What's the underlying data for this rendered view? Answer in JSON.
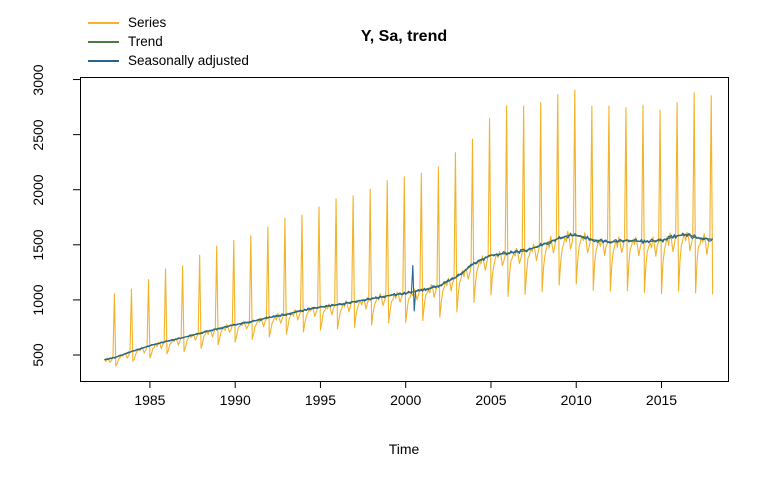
{
  "chart_data": {
    "type": "line",
    "title": "Y, Sa, trend",
    "xlabel": "Time",
    "ylabel": "",
    "x_ticks": [
      1985,
      1990,
      1995,
      2000,
      2005,
      2010,
      2015
    ],
    "y_ticks": [
      500,
      1000,
      1500,
      2000,
      2500,
      3000
    ],
    "xlim": [
      1980.9,
      2018.9
    ],
    "ylim": [
      264,
      3023
    ],
    "grid": false,
    "legend_position": "top-left",
    "frequency": "monthly",
    "x_start": 1982.3333,
    "x_end": 2018.0,
    "legend": [
      {
        "label": "Series",
        "color": "#F3B229"
      },
      {
        "label": "Trend",
        "color": "#4A7C40"
      },
      {
        "label": "Seasonally adjusted",
        "color": "#266394"
      }
    ],
    "series": [
      {
        "name": "Series",
        "color": "#F3B229",
        "width": 1.1
      },
      {
        "name": "Trend",
        "color": "#4A7C40",
        "width": 1.4
      },
      {
        "name": "Seasonally adjusted",
        "color": "#266394",
        "width": 1.1
      }
    ],
    "trend_points": [
      [
        1982.3,
        455
      ],
      [
        1983,
        480
      ],
      [
        1984,
        535
      ],
      [
        1985,
        585
      ],
      [
        1986,
        625
      ],
      [
        1987,
        660
      ],
      [
        1988,
        700
      ],
      [
        1989,
        740
      ],
      [
        1990,
        775
      ],
      [
        1991,
        805
      ],
      [
        1992,
        840
      ],
      [
        1993,
        870
      ],
      [
        1994,
        905
      ],
      [
        1995,
        935
      ],
      [
        1996,
        955
      ],
      [
        1997,
        985
      ],
      [
        1998,
        1010
      ],
      [
        1999,
        1040
      ],
      [
        2000,
        1060
      ],
      [
        2001,
        1090
      ],
      [
        2002,
        1130
      ],
      [
        2003,
        1210
      ],
      [
        2004,
        1330
      ],
      [
        2005,
        1405
      ],
      [
        2006,
        1425
      ],
      [
        2007,
        1445
      ],
      [
        2008,
        1500
      ],
      [
        2009,
        1560
      ],
      [
        2009.7,
        1590
      ],
      [
        2010.5,
        1570
      ],
      [
        2011,
        1545
      ],
      [
        2012,
        1525
      ],
      [
        2013,
        1540
      ],
      [
        2014,
        1528
      ],
      [
        2015,
        1540
      ],
      [
        2016,
        1585
      ],
      [
        2016.6,
        1592
      ],
      [
        2017,
        1565
      ],
      [
        2018,
        1550
      ]
    ],
    "december_peaks": [
      [
        1982,
        1045
      ],
      [
        1983,
        1105
      ],
      [
        1984,
        1180
      ],
      [
        1985,
        1280
      ],
      [
        1986,
        1320
      ],
      [
        1987,
        1400
      ],
      [
        1988,
        1475
      ],
      [
        1989,
        1540
      ],
      [
        1990,
        1600
      ],
      [
        1991,
        1660
      ],
      [
        1992,
        1725
      ],
      [
        1993,
        1790
      ],
      [
        1994,
        1850
      ],
      [
        1995,
        1910
      ],
      [
        1996,
        1950
      ],
      [
        1997,
        2010
      ],
      [
        1998,
        2070
      ],
      [
        1999,
        2130
      ],
      [
        2000,
        2170
      ],
      [
        2001,
        2230
      ],
      [
        2002,
        2320
      ],
      [
        2003,
        2480
      ],
      [
        2004,
        2640
      ],
      [
        2005,
        2730
      ],
      [
        2006,
        2750
      ],
      [
        2007,
        2790
      ],
      [
        2008,
        2860
      ],
      [
        2009,
        2890
      ],
      [
        2010,
        2770
      ],
      [
        2011,
        2750
      ],
      [
        2012,
        2720
      ],
      [
        2013,
        2760
      ],
      [
        2014,
        2740
      ],
      [
        2015,
        2760
      ],
      [
        2016,
        2900
      ],
      [
        2017,
        2840
      ]
    ],
    "seasonal_factors": {
      "jan_start": 0.83,
      "jan_end": 0.68,
      "feb": 0.86,
      "mar": 0.94,
      "apr": 0.965,
      "may": 1.0,
      "jun": 0.97,
      "jul": 1.02,
      "aug": 0.985,
      "sep": 0.92,
      "oct": 0.96,
      "nov": 1.0
    },
    "sa_outliers": [
      [
        2000.4167,
        240
      ],
      [
        2000.5,
        -175
      ]
    ]
  }
}
